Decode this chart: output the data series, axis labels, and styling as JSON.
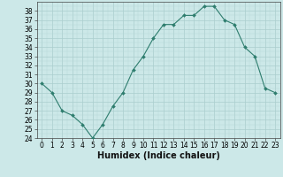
{
  "x": [
    0,
    1,
    2,
    3,
    4,
    5,
    6,
    7,
    8,
    9,
    10,
    11,
    12,
    13,
    14,
    15,
    16,
    17,
    18,
    19,
    20,
    21,
    22,
    23
  ],
  "y": [
    30,
    29,
    27,
    26.5,
    25.5,
    24,
    25.5,
    27.5,
    29,
    31.5,
    33,
    35,
    36.5,
    36.5,
    37.5,
    37.5,
    38.5,
    38.5,
    37,
    36.5,
    34,
    33,
    29.5,
    29
  ],
  "line_color": "#2e7d6e",
  "marker": "D",
  "marker_size": 2.0,
  "bg_color": "#cce8e8",
  "grid_color_major": "#aacece",
  "xlabel": "Humidex (Indice chaleur)",
  "ylim": [
    24,
    39
  ],
  "xlim": [
    -0.5,
    23.5
  ],
  "yticks": [
    24,
    25,
    26,
    27,
    28,
    29,
    30,
    31,
    32,
    33,
    34,
    35,
    36,
    37,
    38
  ],
  "xticks": [
    0,
    1,
    2,
    3,
    4,
    5,
    6,
    7,
    8,
    9,
    10,
    11,
    12,
    13,
    14,
    15,
    16,
    17,
    18,
    19,
    20,
    21,
    22,
    23
  ],
  "tick_label_fontsize": 5.5,
  "xlabel_fontsize": 7.0
}
